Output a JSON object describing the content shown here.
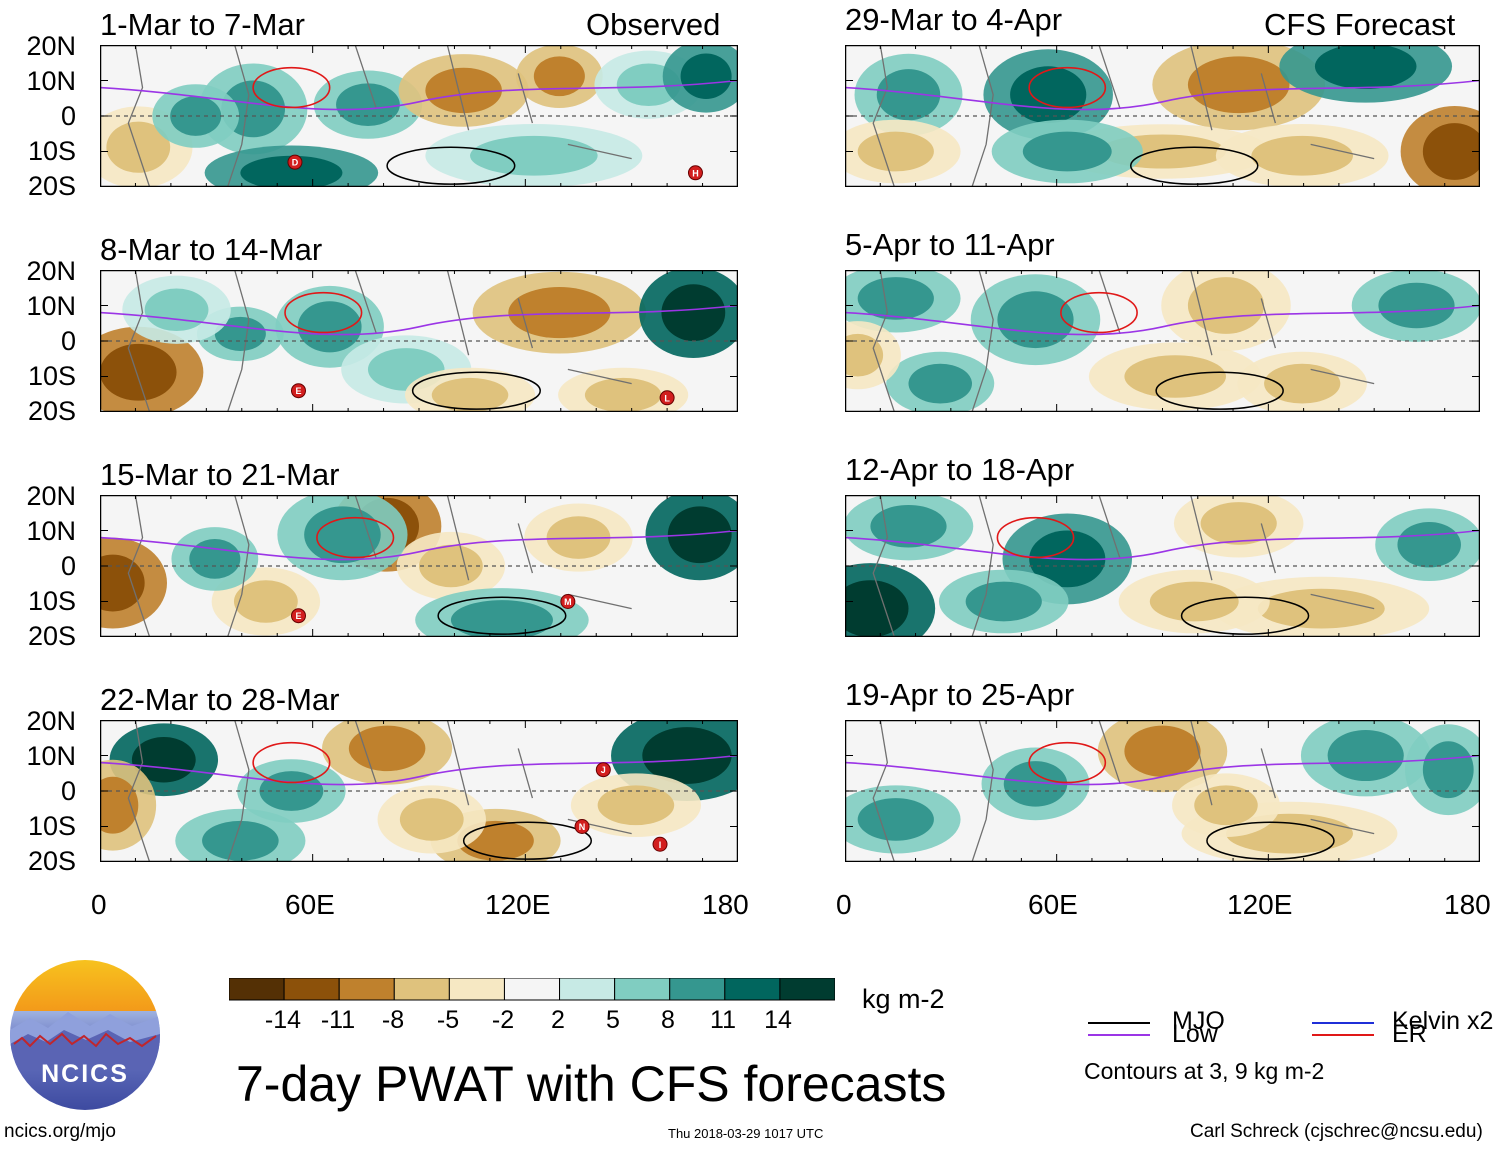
{
  "panels": [
    {
      "title": "1-Mar to 7-Mar",
      "tag": "Observed",
      "column": "observed",
      "storms": [
        {
          "label": "D",
          "lon": 55,
          "lat": -13
        },
        {
          "label": "H",
          "lon": 168,
          "lat": -16
        }
      ]
    },
    {
      "title": "8-Mar to 14-Mar",
      "tag": "",
      "column": "observed",
      "storms": [
        {
          "label": "E",
          "lon": 56,
          "lat": -14
        },
        {
          "label": "L",
          "lon": 160,
          "lat": -16
        }
      ]
    },
    {
      "title": "15-Mar to 21-Mar",
      "tag": "",
      "column": "observed",
      "storms": [
        {
          "label": "E",
          "lon": 56,
          "lat": -14
        },
        {
          "label": "M",
          "lon": 132,
          "lat": -10
        }
      ]
    },
    {
      "title": "22-Mar to 28-Mar",
      "tag": "",
      "column": "observed",
      "storms": [
        {
          "label": "J",
          "lon": 142,
          "lat": 6
        },
        {
          "label": "N",
          "lon": 136,
          "lat": -10
        },
        {
          "label": "I",
          "lon": 158,
          "lat": -15
        }
      ]
    },
    {
      "title": "29-Mar to 4-Apr",
      "tag": "CFS Forecast",
      "column": "forecast",
      "storms": []
    },
    {
      "title": "5-Apr to 11-Apr",
      "tag": "",
      "column": "forecast",
      "storms": []
    },
    {
      "title": "12-Apr to 18-Apr",
      "tag": "",
      "column": "forecast",
      "storms": []
    },
    {
      "title": "19-Apr to 25-Apr",
      "tag": "",
      "column": "forecast",
      "storms": []
    }
  ],
  "axes": {
    "lat_labels": [
      "20N",
      "10N",
      "0",
      "10S",
      "20S"
    ],
    "lon_labels": [
      "0",
      "60E",
      "120E",
      "180"
    ],
    "lat_range": [
      -20,
      20
    ],
    "lon_range": [
      0,
      180
    ]
  },
  "colorbar": {
    "levels": [
      "-14",
      "-11",
      "-8",
      "-5",
      "-2",
      "2",
      "5",
      "8",
      "11",
      "14"
    ],
    "colors": [
      "#543005",
      "#8c510a",
      "#bf812d",
      "#dfc27d",
      "#f6e8c3",
      "#f5f5f5",
      "#c7eae5",
      "#80cdc1",
      "#35978f",
      "#01665e",
      "#003c30"
    ],
    "units": "kg m-2"
  },
  "legend": {
    "items": [
      {
        "label": "MJO",
        "color": "#000000"
      },
      {
        "label": "Kelvin x2",
        "color": "#1f2fd8"
      },
      {
        "label": "Low",
        "color": "#9b35e6"
      },
      {
        "label": "ER",
        "color": "#e01818"
      }
    ],
    "note": "Contours at 3, 9 kg m-2"
  },
  "title": "7-day PWAT with CFS forecasts",
  "logo_text": "NCICS",
  "footer": {
    "url": "ncics.org/mjo",
    "timestamp": "Thu 2018-03-29 1017 UTC",
    "credit": "Carl Schreck (cjschrec@ncsu.edu)"
  }
}
